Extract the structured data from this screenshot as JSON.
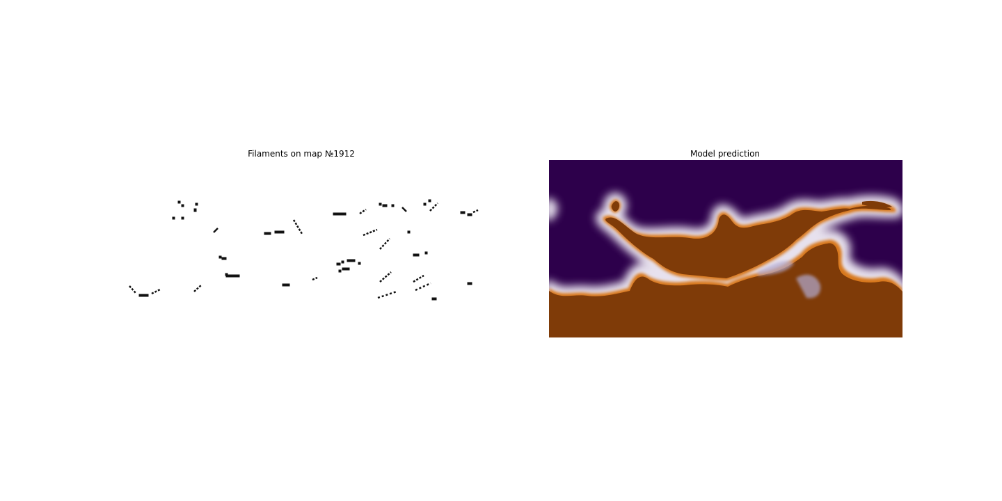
{
  "chart_data": [
    {
      "type": "heatmap",
      "title": "Filaments on map №1912",
      "xlabel": "",
      "ylabel": "",
      "axes_visible": false,
      "colormap": "binary",
      "description_of_marks": "sparse black filament segments on white background"
    },
    {
      "type": "heatmap",
      "title": "Model prediction",
      "xlabel": "",
      "ylabel": "",
      "axes_visible": false,
      "colormap": "PuOr",
      "colors": {
        "low": "#2d004b",
        "mid": "#f7f7f7",
        "high": "#7f3b08",
        "edge_orange": "#e08214"
      }
    }
  ]
}
